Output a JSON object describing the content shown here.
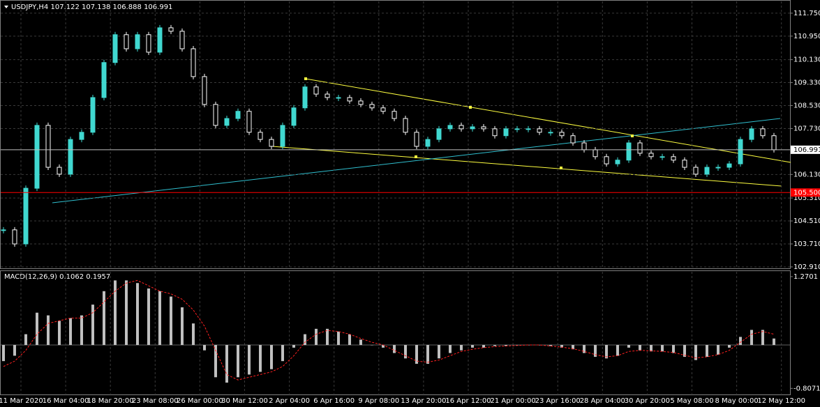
{
  "chart_data": {
    "type": "candlestick",
    "title": "USDJPY,H4  107.122 107.138 106.888 106.991",
    "up_color": "#40d8d0",
    "down_color": "#ffffff",
    "values": [
      104.2,
      103.71,
      105.65,
      107.84,
      106.38,
      106.14,
      107.35,
      107.6,
      108.81,
      110.03,
      111.0,
      110.51,
      111.0,
      110.39,
      111.24,
      111.12,
      110.51,
      109.54,
      108.57,
      107.84,
      108.08,
      108.33,
      107.6,
      107.35,
      107.11,
      107.84,
      108.45,
      109.18,
      108.93,
      108.81,
      108.81,
      108.69,
      108.57,
      108.45,
      108.33,
      108.08,
      107.6,
      107.11,
      107.35,
      107.72,
      107.84,
      107.72,
      107.79,
      107.72,
      107.48,
      107.72,
      107.72,
      107.72,
      107.6,
      107.6,
      107.48,
      107.23,
      106.99,
      106.75,
      106.5,
      106.63,
      107.23,
      106.87,
      106.75,
      106.75,
      106.63,
      106.38,
      106.14,
      106.38,
      106.38,
      106.5,
      107.35,
      107.72,
      107.48,
      106.99
    ],
    "ylim": [
      102.86,
      112.16
    ],
    "yticks": [
      {
        "value": 111.75,
        "label": "111.750"
      },
      {
        "value": 110.95,
        "label": "110.950"
      },
      {
        "value": 110.13,
        "label": "110.130"
      },
      {
        "value": 109.33,
        "label": "109.330"
      },
      {
        "value": 108.53,
        "label": "108.530"
      },
      {
        "value": 107.73,
        "label": "107.730"
      },
      {
        "value": 106.13,
        "label": "106.130"
      },
      {
        "value": 105.31,
        "label": "105.310"
      },
      {
        "value": 104.51,
        "label": "104.510"
      },
      {
        "value": 103.71,
        "label": "103.710"
      },
      {
        "value": 102.91,
        "label": "102.910"
      }
    ],
    "hlines": [
      {
        "value": 106.991,
        "color": "#c0c0c0",
        "label_bg": "#ffffff",
        "label_fg": "#000000"
      },
      {
        "value": {
          "value": 105.5,
          "label": "105.500"
        },
        "color": "#ff0000",
        "label_bg": "#ff0000",
        "label_fg": "#ffffff"
      }
    ],
    "xlabels": [
      "11 Mar 2020",
      "16 Mar 04:00",
      "18 Mar 20:00",
      "23 Mar 08:00",
      "26 Mar 00:00",
      "30 Mar 12:00",
      "2 Apr 04:00",
      "6 Apr 16:00",
      "9 Apr 08:00",
      "13 Apr 20:00",
      "16 Apr 12:00",
      "21 Apr 00:00",
      "23 Apr 16:00",
      "28 Apr 04:00",
      "30 Apr 20:00",
      "5 May 08:00",
      "8 May 00:00",
      "12 May 12:00"
    ],
    "grid": true,
    "macd": {
      "title": "MACD(12,26,9) 0.1062 0.1957",
      "color": "#c0c0c0",
      "signal_color": "#ff2020",
      "values": [
        -0.3,
        -0.2,
        0.2,
        0.6,
        0.55,
        0.45,
        0.5,
        0.55,
        0.75,
        1.0,
        1.2,
        1.2,
        1.15,
        1.05,
        1.0,
        0.9,
        0.7,
        0.4,
        -0.1,
        -0.6,
        -0.7,
        -0.6,
        -0.55,
        -0.5,
        -0.45,
        -0.3,
        -0.05,
        0.2,
        0.3,
        0.3,
        0.25,
        0.2,
        0.1,
        0.0,
        -0.05,
        -0.15,
        -0.25,
        -0.35,
        -0.35,
        -0.25,
        -0.15,
        -0.1,
        -0.05,
        -0.05,
        -0.02,
        -0.02,
        0.0,
        0.0,
        0.0,
        -0.02,
        -0.05,
        -0.08,
        -0.15,
        -0.22,
        -0.25,
        -0.2,
        -0.05,
        -0.1,
        -0.12,
        -0.12,
        -0.15,
        -0.22,
        -0.28,
        -0.22,
        -0.18,
        -0.05,
        0.15,
        0.28,
        0.28,
        0.12
      ],
      "signal": [
        -0.4,
        -0.3,
        -0.1,
        0.2,
        0.4,
        0.45,
        0.5,
        0.5,
        0.6,
        0.8,
        1.0,
        1.15,
        1.2,
        1.1,
        1.0,
        0.95,
        0.85,
        0.65,
        0.35,
        -0.1,
        -0.55,
        -0.65,
        -0.6,
        -0.55,
        -0.5,
        -0.4,
        -0.2,
        0.05,
        0.2,
        0.27,
        0.25,
        0.2,
        0.12,
        0.05,
        0.0,
        -0.1,
        -0.2,
        -0.3,
        -0.32,
        -0.28,
        -0.2,
        -0.12,
        -0.08,
        -0.05,
        -0.03,
        -0.02,
        -0.01,
        0.0,
        0.0,
        -0.02,
        -0.04,
        -0.07,
        -0.12,
        -0.18,
        -0.22,
        -0.2,
        -0.12,
        -0.1,
        -0.11,
        -0.12,
        -0.14,
        -0.19,
        -0.24,
        -0.22,
        -0.18,
        -0.1,
        0.05,
        0.2,
        0.25,
        0.2
      ],
      "ylim": [
        -0.907,
        1.36
      ],
      "yticks": [
        1.2701,
        -0.8071
      ]
    }
  }
}
